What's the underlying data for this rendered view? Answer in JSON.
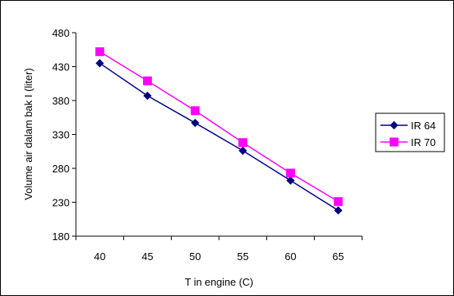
{
  "chart_data": {
    "type": "line",
    "title": "",
    "xlabel": "T in engine (C)",
    "ylabel": "Volume air dalam bak I (liter)",
    "categories": [
      "40",
      "45",
      "50",
      "55",
      "60",
      "65"
    ],
    "y_ticks": [
      "480",
      "430",
      "380",
      "330",
      "280",
      "230",
      "180"
    ],
    "ylim": [
      180,
      480
    ],
    "grid": false,
    "legend_position": "right",
    "series": [
      {
        "name": "IR 64",
        "values": [
          435,
          387,
          347,
          306,
          262,
          218
        ],
        "color": "#000080",
        "marker": "diamond"
      },
      {
        "name": "IR 70",
        "values": [
          452,
          409,
          365,
          318,
          273,
          231
        ],
        "color": "#ff00ff",
        "marker": "square"
      }
    ]
  }
}
